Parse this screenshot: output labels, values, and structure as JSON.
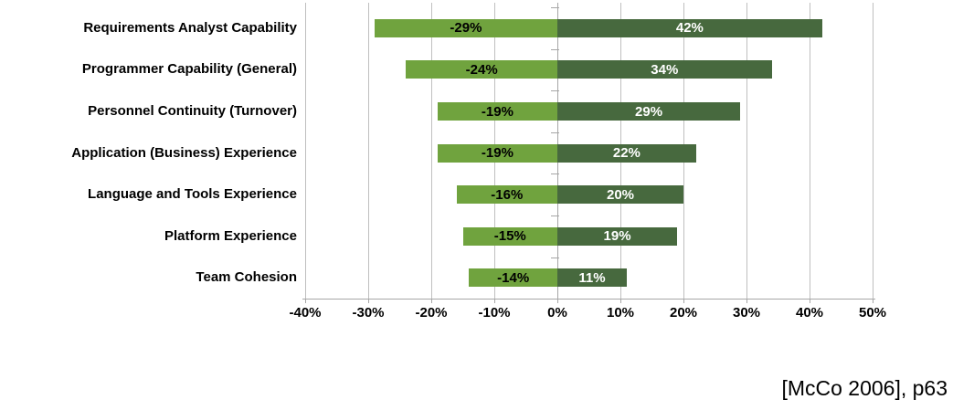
{
  "chart_data": {
    "type": "bar",
    "subtype": "horizontal-diverging",
    "title": "",
    "categories": [
      "Requirements Analyst Capability",
      "Programmer Capability (General)",
      "Personnel Continuity (Turnover)",
      "Application (Business) Experience",
      "Language and Tools Experience",
      "Platform Experience",
      "Team Cohesion"
    ],
    "series": [
      {
        "name": "negative-impact",
        "values": [
          -29,
          -24,
          -19,
          -19,
          -16,
          -15,
          -14
        ]
      },
      {
        "name": "positive-impact",
        "values": [
          42,
          34,
          29,
          22,
          20,
          19,
          11
        ]
      }
    ],
    "data_labels": {
      "negative": [
        "-29%",
        "-24%",
        "-19%",
        "-19%",
        "-16%",
        "-15%",
        "-14%"
      ],
      "positive": [
        "42%",
        "34%",
        "29%",
        "22%",
        "20%",
        "19%",
        "11%"
      ]
    },
    "xlabel": "",
    "ylabel": "",
    "xlim": [
      -40,
      50
    ],
    "x_axis": {
      "tick_values": [
        -40,
        -30,
        -20,
        -10,
        0,
        10,
        20,
        30,
        40,
        50
      ],
      "tick_labels": [
        "-40%",
        "-30%",
        "-20%",
        "-10%",
        "0%",
        "10%",
        "20%",
        "30%",
        "40%",
        "50%"
      ]
    },
    "grid": true,
    "legend": false
  },
  "colors": {
    "negative_bar": "#70A33E",
    "positive_bar": "#47693E",
    "negative_label_text": "#000000",
    "positive_label_text": "#FFFFFF",
    "gridline": "#BFBFBF",
    "axis": "#A6A6A6"
  },
  "citation": "[McCo 2006], p63"
}
